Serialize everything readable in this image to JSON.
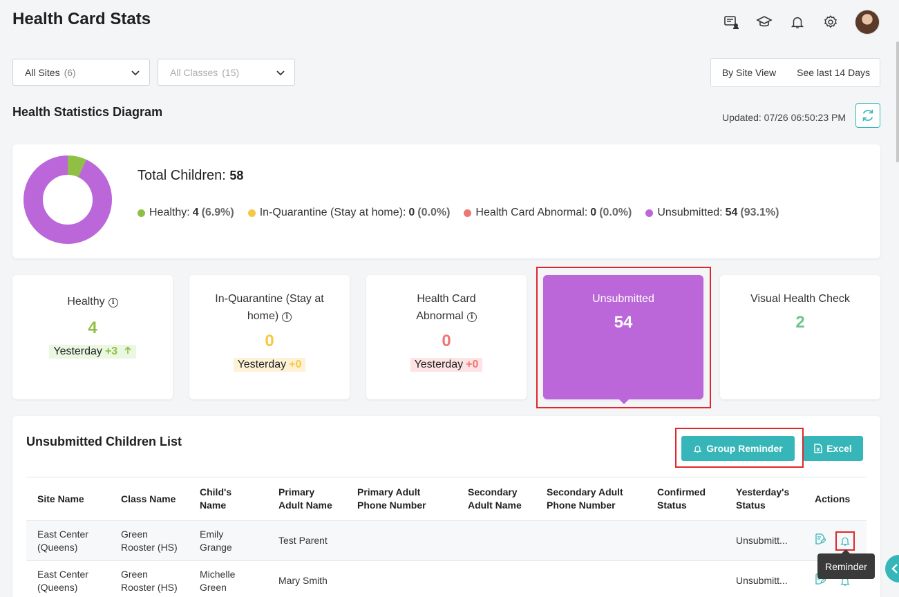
{
  "header": {
    "title": "Health Card Stats",
    "icons": [
      "chat-user-icon",
      "graduation-cap-icon",
      "bell-icon",
      "gear-icon",
      "avatar"
    ]
  },
  "filters": {
    "sites": {
      "label": "All Sites",
      "count": "(6)"
    },
    "classes": {
      "label": "All Classes",
      "count": "(15)"
    }
  },
  "view": {
    "by_site": "By Site View",
    "range": "See last 14 Days"
  },
  "diagram": {
    "title": "Health Statistics Diagram",
    "updated": "Updated: 07/26 06:50:23 PM"
  },
  "summary": {
    "total_label": "Total Children:",
    "total_value": "58",
    "legend": [
      {
        "label": "Healthy:",
        "value": "4",
        "pct": "(6.9%)",
        "color": "#8fc045"
      },
      {
        "label": "In-Quarantine (Stay at home):",
        "value": "0",
        "pct": "(0.0%)",
        "color": "#f7c844"
      },
      {
        "label": "Health Card Abnormal:",
        "value": "0",
        "pct": "(0.0%)",
        "color": "#f07575"
      },
      {
        "label": "Unsubmitted:",
        "value": "54",
        "pct": "(93.1%)",
        "color": "#bb66d9"
      }
    ]
  },
  "chart_data": {
    "type": "pie",
    "categories": [
      "Healthy",
      "In-Quarantine (Stay at home)",
      "Health Card Abnormal",
      "Unsubmitted"
    ],
    "values": [
      4,
      0,
      0,
      54
    ],
    "colors": [
      "#8fc045",
      "#f7c844",
      "#f07575",
      "#bb66d9"
    ]
  },
  "cards": {
    "healthy": {
      "label": "Healthy",
      "value": "4",
      "yday": "Yesterday",
      "delta": "+3",
      "color": "#8fc045"
    },
    "quarantine": {
      "label": "In-Quarantine (Stay at home)",
      "value": "0",
      "yday": "Yesterday",
      "delta": "+0",
      "color": "#f7c844"
    },
    "abnormal": {
      "label": "Health Card Abnormal",
      "value": "0",
      "yday": "Yesterday",
      "delta": "+0",
      "color": "#f07575"
    },
    "unsubmitted": {
      "label": "Unsubmitted",
      "value": "54"
    },
    "visual": {
      "label": "Visual Health Check",
      "value": "2",
      "color": "#6cc58f"
    }
  },
  "list": {
    "title": "Unsubmitted Children List",
    "group_reminder": "Group Reminder",
    "excel": "Excel",
    "columns": [
      "Site Name",
      "Class Name",
      "Child's Name",
      "Primary Adult Name",
      "Primary Adult Phone Number",
      "Secondary Adult Name",
      "Secondary Adult Phone Number",
      "Confirmed Status",
      "Yesterday's Status",
      "Actions"
    ],
    "rows": [
      {
        "site": "East Center (Queens)",
        "class": "Green Rooster (HS)",
        "child": "Emily Grange",
        "primary": "Test Parent",
        "primary_phone": "",
        "secondary": "",
        "secondary_phone": "",
        "confirmed": "",
        "yesterday": "Unsubmitt..."
      },
      {
        "site": "East Center (Queens)",
        "class": "Green Rooster (HS)",
        "child": "Michelle Green",
        "primary": "Mary Smith",
        "primary_phone": "",
        "secondary": "",
        "secondary_phone": "",
        "confirmed": "",
        "yesterday": "Unsubmitt..."
      }
    ],
    "tooltip": "Reminder"
  }
}
